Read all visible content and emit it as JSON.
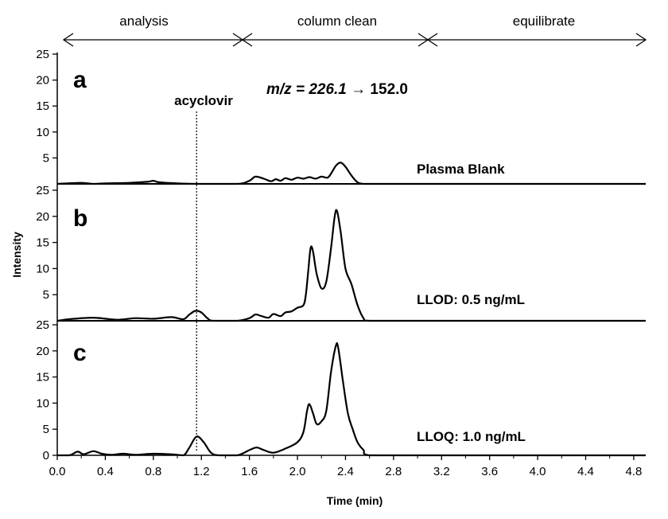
{
  "chart_data": {
    "type": "line",
    "xlabel": "Time (min)",
    "ylabel": "Intensity",
    "xlim": [
      0.0,
      4.9
    ],
    "x_ticks": [
      "0.0",
      "0.4",
      "0.8",
      "1.2",
      "1.6",
      "2.0",
      "2.4",
      "2.8",
      "3.2",
      "3.6",
      "4.0",
      "4.4",
      "4.8"
    ],
    "x_tick_values": [
      0.0,
      0.4,
      0.8,
      1.2,
      1.6,
      2.0,
      2.4,
      2.8,
      3.2,
      3.6,
      4.0,
      4.4,
      4.8
    ],
    "grid": false,
    "phases": [
      {
        "label": "analysis",
        "range": [
          0.0,
          1.5
        ]
      },
      {
        "label": "column clean",
        "range": [
          1.5,
          3.1
        ]
      },
      {
        "label": "equilibrate",
        "range": [
          3.1,
          4.9
        ]
      }
    ],
    "transition": {
      "label_italic": "m/z = 226.1",
      "label_rest": " → 152.0"
    },
    "marker": {
      "label": "acyclovir",
      "x": 1.16
    },
    "panels": [
      {
        "letter": "a",
        "name": "Plasma Blank",
        "ylim": [
          0,
          25
        ],
        "y_ticks": [
          "5",
          "10",
          "15",
          "20",
          "25"
        ],
        "y_tick_values": [
          5,
          10,
          15,
          20,
          25
        ],
        "x": [
          0.0,
          0.2,
          0.3,
          0.4,
          0.6,
          0.75,
          0.8,
          0.85,
          1.0,
          1.2,
          1.5,
          1.6,
          1.65,
          1.72,
          1.78,
          1.82,
          1.86,
          1.9,
          1.95,
          2.0,
          2.05,
          2.1,
          2.15,
          2.2,
          2.25,
          2.28,
          2.32,
          2.36,
          2.4,
          2.45,
          2.5,
          2.55,
          2.6,
          3.0,
          3.5,
          4.0,
          4.5,
          4.9
        ],
        "y": [
          0.0,
          0.2,
          0.0,
          0.1,
          0.2,
          0.4,
          0.6,
          0.3,
          0.1,
          0.0,
          0.0,
          0.6,
          1.4,
          1.0,
          0.5,
          0.9,
          0.6,
          1.1,
          0.8,
          1.2,
          1.0,
          1.3,
          1.0,
          1.4,
          1.2,
          2.0,
          3.5,
          4.1,
          3.3,
          1.6,
          0.3,
          0.0,
          0.0,
          0.0,
          0.0,
          0.0,
          0.0,
          0.0
        ]
      },
      {
        "letter": "b",
        "name": "LLOD: 0.5 ng/mL",
        "ylim": [
          0,
          25
        ],
        "y_ticks": [
          "5",
          "10",
          "15",
          "20",
          "25"
        ],
        "y_tick_values": [
          5,
          10,
          15,
          20,
          25
        ],
        "x": [
          0.0,
          0.1,
          0.3,
          0.5,
          0.65,
          0.8,
          0.95,
          1.05,
          1.1,
          1.15,
          1.2,
          1.25,
          1.3,
          1.5,
          1.6,
          1.65,
          1.7,
          1.76,
          1.8,
          1.86,
          1.9,
          1.95,
          2.0,
          2.05,
          2.07,
          2.09,
          2.11,
          2.13,
          2.16,
          2.2,
          2.24,
          2.28,
          2.31,
          2.33,
          2.36,
          2.4,
          2.45,
          2.5,
          2.55,
          2.6,
          3.0,
          3.5,
          4.0,
          4.5,
          4.9
        ],
        "y": [
          0.0,
          0.3,
          0.6,
          0.2,
          0.5,
          0.4,
          0.7,
          0.3,
          1.2,
          1.9,
          1.6,
          0.5,
          0.0,
          0.0,
          0.5,
          1.2,
          0.9,
          0.6,
          1.3,
          0.9,
          1.6,
          1.8,
          2.5,
          3.0,
          5.0,
          9.5,
          14.0,
          13.2,
          9.0,
          6.2,
          7.5,
          14.0,
          20.0,
          21.0,
          17.0,
          10.0,
          7.0,
          3.0,
          0.5,
          0.0,
          0.0,
          0.0,
          0.0,
          0.0,
          0.0
        ]
      },
      {
        "letter": "c",
        "name": "LLOQ: 1.0 ng/mL",
        "ylim": [
          0,
          25
        ],
        "y_ticks": [
          "0",
          "5",
          "10",
          "15",
          "20",
          "25"
        ],
        "y_tick_values": [
          0,
          5,
          10,
          15,
          20,
          25
        ],
        "x": [
          0.0,
          0.1,
          0.17,
          0.22,
          0.3,
          0.37,
          0.45,
          0.55,
          0.65,
          0.8,
          0.95,
          1.05,
          1.1,
          1.16,
          1.22,
          1.28,
          1.35,
          1.5,
          1.6,
          1.66,
          1.72,
          1.8,
          1.9,
          2.0,
          2.05,
          2.08,
          2.1,
          2.13,
          2.16,
          2.2,
          2.24,
          2.28,
          2.32,
          2.34,
          2.38,
          2.42,
          2.46,
          2.5,
          2.55,
          2.6,
          3.0,
          3.5,
          4.0,
          4.5,
          4.9
        ],
        "y": [
          0.0,
          0.0,
          0.7,
          0.2,
          0.8,
          0.3,
          0.1,
          0.3,
          0.1,
          0.3,
          0.2,
          0.0,
          1.5,
          3.6,
          2.5,
          0.5,
          0.0,
          0.0,
          1.0,
          1.5,
          1.0,
          0.5,
          1.3,
          2.5,
          4.5,
          8.5,
          9.8,
          8.0,
          6.0,
          6.5,
          8.5,
          16.0,
          21.0,
          20.5,
          14.0,
          8.0,
          5.0,
          2.5,
          1.0,
          0.0,
          0.0,
          0.0,
          0.0,
          0.0,
          0.0
        ]
      }
    ]
  }
}
